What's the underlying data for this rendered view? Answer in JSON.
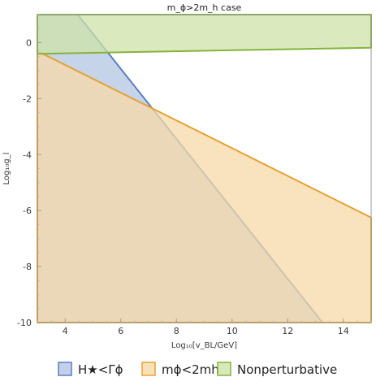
{
  "chart_data": {
    "type": "area",
    "title": "m_ϕ>2m_h case",
    "xlabel": "Log₁₀[v_BL/GeV]",
    "ylabel": "Log₁₀g_l",
    "xlim": [
      3,
      15
    ],
    "ylim": [
      -10,
      1
    ],
    "x_ticks": [
      4,
      6,
      8,
      10,
      12,
      14
    ],
    "x_tick_labels": [
      "4",
      "6",
      "8",
      "10",
      "12",
      "14"
    ],
    "y_ticks": [
      0,
      -2,
      -4,
      -6,
      -8,
      -10
    ],
    "y_tick_labels": [
      "0",
      "-2",
      "-4",
      "-6",
      "-8",
      "-10"
    ],
    "grid": false,
    "legend_position": "bottom",
    "series": [
      {
        "key": "hstar",
        "name": "H★<Γϕ",
        "fill": "#b3c6e3",
        "stroke": "#5a7fc0",
        "points": [
          [
            3.0,
            1.0
          ],
          [
            4.45,
            1.0
          ],
          [
            13.25,
            -10.0
          ],
          [
            3.0,
            -10.0
          ]
        ]
      },
      {
        "key": "mphi",
        "name": "mϕ<2mh",
        "fill": "#f6d9a8",
        "stroke": "#e5a234",
        "points": [
          [
            3.0,
            -0.3
          ],
          [
            15.0,
            -6.25
          ],
          [
            15.0,
            -10.0
          ],
          [
            3.0,
            -10.0
          ]
        ]
      },
      {
        "key": "nonpert",
        "name": "Nonperturbative",
        "fill": "#cde3a8",
        "stroke": "#86b33a",
        "points": [
          [
            3.0,
            1.0
          ],
          [
            15.0,
            1.0
          ],
          [
            15.0,
            -0.18
          ],
          [
            3.0,
            -0.4
          ]
        ]
      }
    ]
  }
}
